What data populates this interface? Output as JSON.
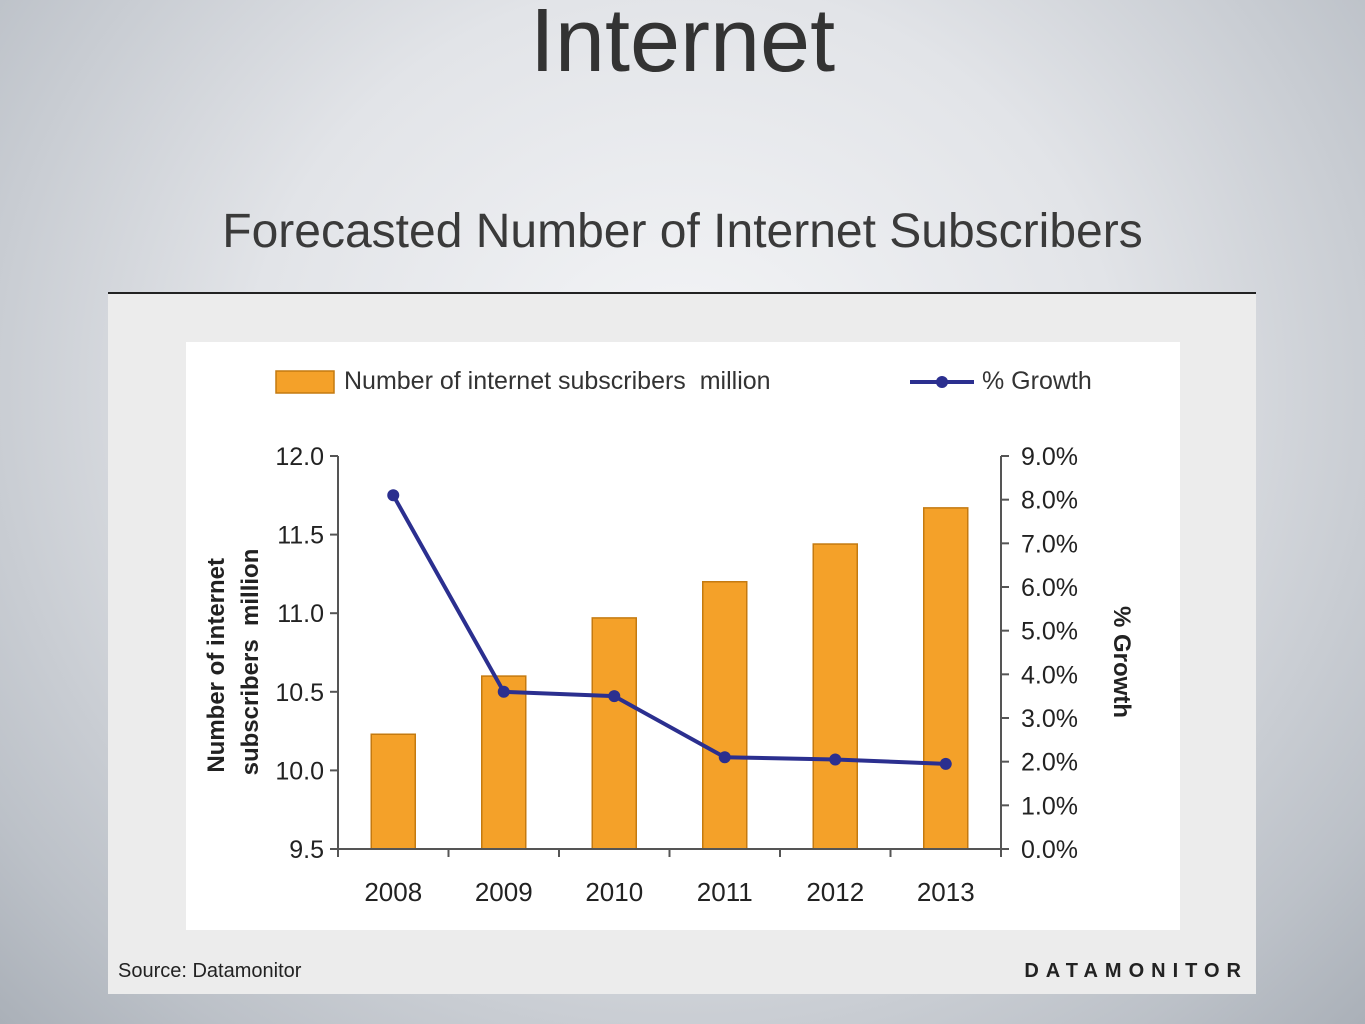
{
  "slide": {
    "title": "Internet",
    "subtitle": "Forecasted Number of Internet Subscribers",
    "source": "Source: Datamonitor",
    "brand": "DATAMONITOR"
  },
  "chart_data": {
    "type": "bar",
    "categories": [
      "2008",
      "2009",
      "2010",
      "2011",
      "2012",
      "2013"
    ],
    "series": [
      {
        "name": "Number of internet subscribers  million",
        "type": "bar",
        "axis": "left",
        "color": "#f4a129",
        "values": [
          10.23,
          10.6,
          10.97,
          11.2,
          11.44,
          11.67
        ]
      },
      {
        "name": "% Growth",
        "type": "line",
        "axis": "right",
        "color": "#2b2f8f",
        "values": [
          8.1,
          3.6,
          3.5,
          2.1,
          2.05,
          1.95
        ]
      }
    ],
    "ylabel": "Number of internet subscribers  million",
    "y2label": "% Growth",
    "ylim": [
      9.5,
      12.0
    ],
    "y2lim": [
      0,
      9
    ],
    "yticks": [
      "9.5",
      "10.0",
      "10.5",
      "11.0",
      "11.5",
      "12.0"
    ],
    "y2ticks": [
      "0.0%",
      "1.0%",
      "2.0%",
      "3.0%",
      "4.0%",
      "5.0%",
      "6.0%",
      "7.0%",
      "8.0%",
      "9.0%"
    ],
    "legend": "top",
    "grid": false
  }
}
